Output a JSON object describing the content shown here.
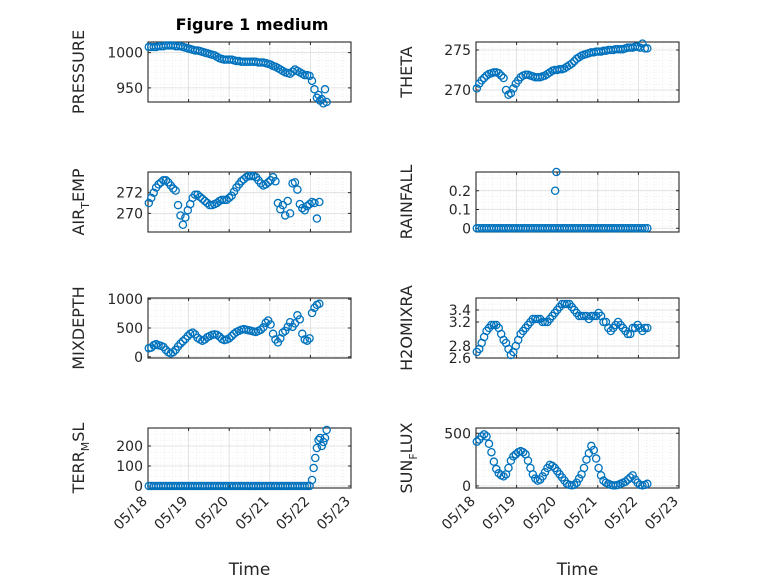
{
  "figure": {
    "title": "Figure 1 medium",
    "marker_color": "#0072bd",
    "axes_color": "#262626",
    "grid_color": "#dcdcdc",
    "x_tick_labels": [
      "05/18",
      "05/19",
      "05/20",
      "05/21",
      "05/22",
      "05/23"
    ],
    "x_label": "Time"
  },
  "chart_data": [
    {
      "type": "scatter",
      "ylabel": "PRESSURE",
      "xlim": [
        0,
        5
      ],
      "ylim": [
        930,
        1015
      ],
      "yticks": [
        950,
        1000
      ],
      "ytick_labels": [
        "950",
        "1000"
      ],
      "xlabel": "",
      "grid": true,
      "x": [
        0.02,
        0.08,
        0.14,
        0.2,
        0.26,
        0.32,
        0.38,
        0.44,
        0.5,
        0.56,
        0.62,
        0.68,
        0.74,
        0.8,
        0.86,
        0.92,
        0.98,
        1.04,
        1.1,
        1.16,
        1.22,
        1.28,
        1.34,
        1.4,
        1.46,
        1.52,
        1.58,
        1.64,
        1.7,
        1.76,
        1.82,
        1.88,
        1.94,
        2.0,
        2.06,
        2.12,
        2.18,
        2.24,
        2.3,
        2.36,
        2.42,
        2.48,
        2.54,
        2.6,
        2.66,
        2.72,
        2.78,
        2.84,
        2.9,
        2.96,
        3.02,
        3.08,
        3.14,
        3.2,
        3.26,
        3.32,
        3.38,
        3.44,
        3.5,
        3.56,
        3.62,
        3.68,
        3.74,
        3.8,
        3.86,
        3.92,
        3.98,
        4.04,
        4.1,
        4.16,
        4.2,
        4.24,
        4.28,
        4.32,
        4.36,
        4.4
      ],
      "y": [
        1008,
        1008,
        1008,
        1008,
        1009,
        1009,
        1009,
        1010,
        1010,
        1010,
        1010,
        1009,
        1009,
        1009,
        1008,
        1007,
        1006,
        1005,
        1004,
        1003,
        1003,
        1002,
        1001,
        1000,
        999,
        998,
        997,
        996,
        994,
        992,
        991,
        990,
        990,
        990,
        990,
        989,
        988,
        988,
        987,
        987,
        987,
        987,
        987,
        987,
        987,
        986,
        986,
        986,
        985,
        984,
        983,
        981,
        980,
        978,
        976,
        974,
        972,
        971,
        970,
        973,
        976,
        974,
        972,
        970,
        968,
        968,
        967,
        960,
        948,
        936,
        940,
        932,
        934,
        928,
        948,
        930
      ]
    },
    {
      "type": "scatter",
      "ylabel": "THETA",
      "xlim": [
        0,
        5
      ],
      "ylim": [
        268.5,
        276
      ],
      "yticks": [
        270,
        275
      ],
      "ytick_labels": [
        "270",
        "275"
      ],
      "xlabel": "",
      "grid": true,
      "x": [
        0.02,
        0.08,
        0.14,
        0.2,
        0.26,
        0.32,
        0.38,
        0.44,
        0.5,
        0.56,
        0.62,
        0.68,
        0.74,
        0.8,
        0.86,
        0.92,
        0.98,
        1.04,
        1.1,
        1.16,
        1.22,
        1.28,
        1.34,
        1.4,
        1.46,
        1.52,
        1.58,
        1.64,
        1.7,
        1.76,
        1.82,
        1.88,
        1.94,
        2.0,
        2.06,
        2.12,
        2.18,
        2.24,
        2.3,
        2.36,
        2.42,
        2.48,
        2.54,
        2.6,
        2.66,
        2.72,
        2.78,
        2.84,
        2.9,
        2.96,
        3.02,
        3.08,
        3.14,
        3.2,
        3.26,
        3.32,
        3.38,
        3.44,
        3.5,
        3.56,
        3.62,
        3.68,
        3.74,
        3.8,
        3.86,
        3.92,
        3.98,
        4.04,
        4.1,
        4.16,
        4.22
      ],
      "y": [
        270.2,
        270.8,
        271.2,
        271.5,
        271.8,
        272.0,
        272.1,
        272.2,
        272.2,
        272.1,
        271.8,
        271.5,
        270.0,
        269.4,
        269.6,
        270.2,
        270.8,
        271.2,
        271.6,
        271.8,
        271.9,
        271.9,
        271.8,
        271.7,
        271.6,
        271.6,
        271.6,
        271.7,
        271.8,
        272.0,
        272.2,
        272.4,
        272.5,
        272.5,
        272.6,
        272.6,
        272.7,
        272.9,
        273.1,
        273.3,
        273.6,
        273.9,
        274.1,
        274.3,
        274.4,
        274.5,
        274.6,
        274.7,
        274.7,
        274.8,
        274.8,
        274.8,
        274.9,
        274.9,
        275.0,
        275.0,
        275.0,
        275.1,
        275.1,
        275.1,
        275.1,
        275.2,
        275.3,
        275.3,
        275.3,
        275.4,
        275.4,
        275.3,
        275.8,
        275.2,
        275.2
      ]
    },
    {
      "type": "scatter",
      "ylabel": "AIR_TEMP",
      "xlim": [
        0,
        5
      ],
      "ylim": [
        268.2,
        274
      ],
      "yticks": [
        270,
        272
      ],
      "ytick_labels": [
        "270",
        "272"
      ],
      "xlabel": "",
      "grid": true,
      "x": [
        0.02,
        0.08,
        0.14,
        0.2,
        0.26,
        0.32,
        0.38,
        0.44,
        0.5,
        0.56,
        0.62,
        0.68,
        0.74,
        0.8,
        0.86,
        0.92,
        0.98,
        1.04,
        1.1,
        1.16,
        1.22,
        1.28,
        1.34,
        1.4,
        1.46,
        1.52,
        1.58,
        1.64,
        1.7,
        1.76,
        1.82,
        1.88,
        1.94,
        2.0,
        2.06,
        2.12,
        2.18,
        2.24,
        2.3,
        2.36,
        2.42,
        2.48,
        2.54,
        2.6,
        2.66,
        2.72,
        2.78,
        2.84,
        2.9,
        2.96,
        3.02,
        3.08,
        3.14,
        3.2,
        3.26,
        3.32,
        3.38,
        3.44,
        3.5,
        3.56,
        3.62,
        3.68,
        3.74,
        3.8,
        3.86,
        3.92,
        3.98,
        4.04,
        4.1,
        4.16,
        4.22
      ],
      "y": [
        271.0,
        271.5,
        272.0,
        272.5,
        272.8,
        273.0,
        273.2,
        273.2,
        273.0,
        272.7,
        272.4,
        272.2,
        270.8,
        269.8,
        268.9,
        269.6,
        270.3,
        270.9,
        271.5,
        271.8,
        271.8,
        271.6,
        271.4,
        271.2,
        271.0,
        270.8,
        270.8,
        270.9,
        271.0,
        271.2,
        271.3,
        271.3,
        271.3,
        271.5,
        271.7,
        272.1,
        272.5,
        272.8,
        273.1,
        273.3,
        273.5,
        273.6,
        273.6,
        273.6,
        273.5,
        273.2,
        272.9,
        272.7,
        272.8,
        273.0,
        273.2,
        273.5,
        273.1,
        271.0,
        270.4,
        270.8,
        269.8,
        271.2,
        270.0,
        272.9,
        273.0,
        272.3,
        270.9,
        270.5,
        270.3,
        270.7,
        270.9,
        271.1,
        271.0,
        269.5,
        271.1
      ]
    },
    {
      "type": "scatter",
      "ylabel": "RAINFALL",
      "xlim": [
        0,
        5
      ],
      "ylim": [
        -0.02,
        0.3
      ],
      "yticks": [
        0,
        0.1,
        0.2
      ],
      "ytick_labels": [
        "0",
        "0.1",
        "0.2"
      ],
      "xlabel": "",
      "grid": true,
      "x": [
        0.02,
        0.08,
        0.14,
        0.2,
        0.26,
        0.32,
        0.38,
        0.44,
        0.5,
        0.56,
        0.62,
        0.68,
        0.74,
        0.8,
        0.86,
        0.92,
        0.98,
        1.04,
        1.1,
        1.16,
        1.22,
        1.28,
        1.34,
        1.4,
        1.46,
        1.52,
        1.58,
        1.64,
        1.7,
        1.76,
        1.82,
        1.88,
        1.94,
        2.0,
        2.06,
        2.12,
        2.18,
        2.24,
        2.3,
        2.36,
        2.42,
        2.48,
        2.54,
        2.6,
        2.66,
        2.72,
        2.78,
        2.84,
        2.9,
        2.96,
        3.02,
        3.08,
        3.14,
        3.2,
        3.26,
        3.32,
        3.38,
        3.44,
        3.5,
        3.56,
        3.62,
        3.68,
        3.74,
        3.8,
        3.86,
        3.92,
        3.98,
        4.04,
        4.1,
        4.16,
        4.22,
        1.95,
        1.98
      ],
      "y": [
        0,
        0,
        0,
        0,
        0,
        0,
        0,
        0,
        0,
        0,
        0,
        0,
        0,
        0,
        0,
        0,
        0,
        0,
        0,
        0,
        0,
        0,
        0,
        0,
        0,
        0,
        0,
        0,
        0,
        0,
        0,
        0,
        0,
        0,
        0,
        0,
        0,
        0,
        0,
        0,
        0,
        0,
        0,
        0,
        0,
        0,
        0,
        0,
        0,
        0,
        0,
        0,
        0,
        0,
        0,
        0,
        0,
        0,
        0,
        0,
        0,
        0,
        0,
        0,
        0,
        0,
        0,
        0,
        0,
        0,
        0,
        0.2,
        0.3
      ]
    },
    {
      "type": "scatter",
      "ylabel": "MIXDEPTH",
      "xlim": [
        0,
        5
      ],
      "ylim": [
        -20,
        1020
      ],
      "yticks": [
        0,
        500,
        1000
      ],
      "ytick_labels": [
        "0",
        "500",
        "1000"
      ],
      "xlabel": "",
      "grid": true,
      "x": [
        0.02,
        0.08,
        0.14,
        0.2,
        0.26,
        0.32,
        0.38,
        0.44,
        0.5,
        0.56,
        0.62,
        0.68,
        0.74,
        0.8,
        0.86,
        0.92,
        0.98,
        1.04,
        1.1,
        1.16,
        1.22,
        1.28,
        1.34,
        1.4,
        1.46,
        1.52,
        1.58,
        1.64,
        1.7,
        1.76,
        1.82,
        1.88,
        1.94,
        2.0,
        2.06,
        2.12,
        2.18,
        2.24,
        2.3,
        2.36,
        2.42,
        2.48,
        2.54,
        2.6,
        2.66,
        2.72,
        2.78,
        2.84,
        2.9,
        2.96,
        3.02,
        3.08,
        3.14,
        3.2,
        3.26,
        3.32,
        3.38,
        3.44,
        3.5,
        3.56,
        3.62,
        3.68,
        3.74,
        3.8,
        3.86,
        3.92,
        3.98,
        4.04,
        4.1,
        4.16,
        4.22
      ],
      "y": [
        150,
        160,
        200,
        220,
        200,
        190,
        170,
        120,
        80,
        60,
        80,
        120,
        180,
        230,
        270,
        310,
        360,
        400,
        420,
        390,
        330,
        300,
        280,
        300,
        340,
        360,
        380,
        390,
        380,
        350,
        310,
        290,
        300,
        320,
        360,
        400,
        430,
        450,
        470,
        480,
        470,
        460,
        450,
        440,
        430,
        450,
        470,
        510,
        590,
        630,
        560,
        400,
        300,
        250,
        320,
        420,
        450,
        520,
        600,
        520,
        580,
        720,
        650,
        400,
        300,
        280,
        320,
        760,
        850,
        900,
        920
      ]
    },
    {
      "type": "scatter",
      "ylabel": "H2OMIXRA",
      "xlim": [
        0,
        5
      ],
      "ylim": [
        2.6,
        3.6
      ],
      "yticks": [
        2.6,
        2.8,
        3.2,
        3.4
      ],
      "ytick_labels": [
        "2.6",
        "2.8",
        "3.2",
        "3.4"
      ],
      "xlabel": "",
      "grid": true,
      "x": [
        0.02,
        0.08,
        0.14,
        0.2,
        0.26,
        0.32,
        0.38,
        0.44,
        0.5,
        0.56,
        0.62,
        0.68,
        0.74,
        0.8,
        0.86,
        0.92,
        0.98,
        1.04,
        1.1,
        1.16,
        1.22,
        1.28,
        1.34,
        1.4,
        1.46,
        1.52,
        1.58,
        1.64,
        1.7,
        1.76,
        1.82,
        1.88,
        1.94,
        2.0,
        2.06,
        2.12,
        2.18,
        2.24,
        2.3,
        2.36,
        2.42,
        2.48,
        2.54,
        2.6,
        2.66,
        2.72,
        2.78,
        2.84,
        2.9,
        2.96,
        3.02,
        3.08,
        3.14,
        3.2,
        3.26,
        3.32,
        3.38,
        3.44,
        3.5,
        3.56,
        3.62,
        3.68,
        3.74,
        3.8,
        3.86,
        3.92,
        3.98,
        4.04,
        4.1,
        4.16,
        4.22
      ],
      "y": [
        2.7,
        2.75,
        2.85,
        2.95,
        3.05,
        3.1,
        3.15,
        3.15,
        3.15,
        3.1,
        3.0,
        2.9,
        2.85,
        2.75,
        2.65,
        2.7,
        2.8,
        2.9,
        3.0,
        3.05,
        3.1,
        3.15,
        3.2,
        3.25,
        3.25,
        3.25,
        3.25,
        3.2,
        3.2,
        3.2,
        3.25,
        3.3,
        3.35,
        3.4,
        3.45,
        3.5,
        3.5,
        3.5,
        3.5,
        3.45,
        3.4,
        3.35,
        3.3,
        3.3,
        3.3,
        3.3,
        3.25,
        3.3,
        3.3,
        3.3,
        3.35,
        3.3,
        3.2,
        3.2,
        3.1,
        3.05,
        3.1,
        3.15,
        3.2,
        3.15,
        3.1,
        3.05,
        3.0,
        3.0,
        3.1,
        3.1,
        3.15,
        3.1,
        3.05,
        3.1,
        3.1
      ]
    },
    {
      "type": "scatter",
      "ylabel": "TERR_MSL",
      "xlim": [
        0,
        5
      ],
      "ylim": [
        -10,
        290
      ],
      "yticks": [
        0,
        100,
        200
      ],
      "ytick_labels": [
        "0",
        "100",
        "200"
      ],
      "xlabel": "Time",
      "grid": true,
      "x": [
        0.02,
        0.08,
        0.14,
        0.2,
        0.26,
        0.32,
        0.38,
        0.44,
        0.5,
        0.56,
        0.62,
        0.68,
        0.74,
        0.8,
        0.86,
        0.92,
        0.98,
        1.04,
        1.1,
        1.16,
        1.22,
        1.28,
        1.34,
        1.4,
        1.46,
        1.52,
        1.58,
        1.64,
        1.7,
        1.76,
        1.82,
        1.88,
        1.94,
        2.0,
        2.06,
        2.12,
        2.18,
        2.24,
        2.3,
        2.36,
        2.42,
        2.48,
        2.54,
        2.6,
        2.66,
        2.72,
        2.78,
        2.84,
        2.9,
        2.96,
        3.02,
        3.08,
        3.14,
        3.2,
        3.26,
        3.32,
        3.38,
        3.44,
        3.5,
        3.56,
        3.62,
        3.68,
        3.74,
        3.8,
        3.86,
        3.92,
        3.98,
        4.04,
        4.08,
        4.12,
        4.16,
        4.2,
        4.24,
        4.28,
        4.32,
        4.36,
        4.4
      ],
      "y": [
        0,
        0,
        0,
        0,
        0,
        0,
        0,
        0,
        0,
        0,
        0,
        0,
        0,
        0,
        0,
        0,
        0,
        0,
        0,
        0,
        0,
        0,
        0,
        0,
        0,
        0,
        0,
        0,
        0,
        0,
        0,
        0,
        0,
        0,
        0,
        0,
        0,
        0,
        0,
        0,
        0,
        0,
        0,
        0,
        0,
        0,
        0,
        0,
        0,
        0,
        0,
        0,
        0,
        0,
        0,
        0,
        0,
        0,
        0,
        0,
        0,
        0,
        0,
        0,
        0,
        0,
        0,
        30,
        90,
        140,
        190,
        230,
        240,
        200,
        220,
        240,
        280
      ]
    },
    {
      "type": "scatter",
      "ylabel": "SUN_FLUX",
      "xlim": [
        0,
        5
      ],
      "ylim": [
        -20,
        550
      ],
      "yticks": [
        0,
        500
      ],
      "ytick_labels": [
        "0",
        "500"
      ],
      "xlabel": "Time",
      "grid": true,
      "x": [
        0.02,
        0.08,
        0.14,
        0.2,
        0.26,
        0.32,
        0.38,
        0.44,
        0.5,
        0.56,
        0.62,
        0.68,
        0.74,
        0.8,
        0.86,
        0.92,
        0.98,
        1.04,
        1.1,
        1.16,
        1.22,
        1.28,
        1.34,
        1.4,
        1.46,
        1.52,
        1.58,
        1.64,
        1.7,
        1.76,
        1.82,
        1.88,
        1.94,
        2.0,
        2.06,
        2.12,
        2.18,
        2.24,
        2.3,
        2.36,
        2.42,
        2.48,
        2.54,
        2.6,
        2.66,
        2.72,
        2.78,
        2.84,
        2.9,
        2.96,
        3.02,
        3.08,
        3.14,
        3.2,
        3.26,
        3.32,
        3.38,
        3.44,
        3.5,
        3.56,
        3.62,
        3.68,
        3.74,
        3.8,
        3.86,
        3.92,
        3.98,
        4.04,
        4.1,
        4.16,
        4.22
      ],
      "y": [
        420,
        440,
        470,
        490,
        470,
        400,
        320,
        230,
        160,
        120,
        100,
        90,
        110,
        170,
        240,
        280,
        300,
        320,
        330,
        320,
        300,
        240,
        170,
        110,
        70,
        50,
        60,
        90,
        130,
        170,
        200,
        190,
        170,
        140,
        110,
        80,
        50,
        20,
        10,
        5,
        10,
        30,
        70,
        110,
        170,
        250,
        310,
        380,
        340,
        260,
        170,
        100,
        50,
        30,
        20,
        10,
        5,
        5,
        10,
        20,
        30,
        40,
        60,
        80,
        100,
        60,
        30,
        10,
        5,
        10,
        20
      ]
    }
  ]
}
